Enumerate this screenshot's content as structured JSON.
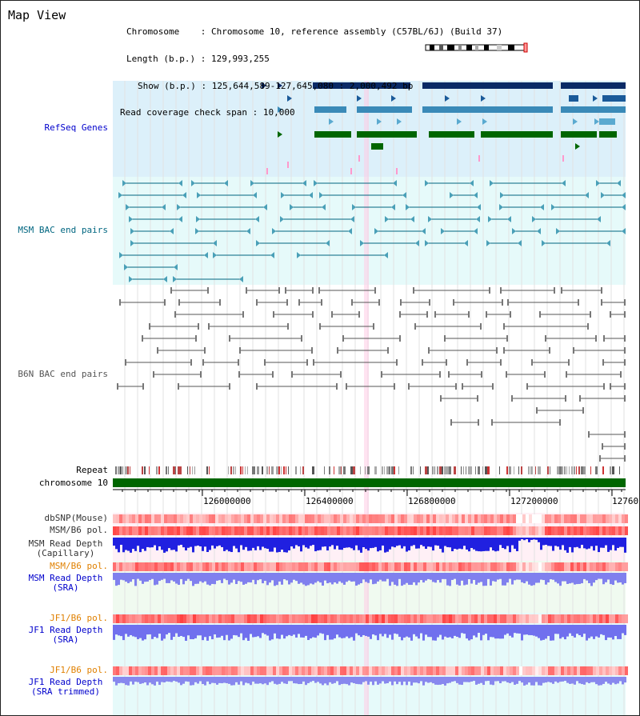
{
  "title": "Map View",
  "info": {
    "chromosome_key": "Chromosome",
    "chromosome_value": "Chromosome 10, reference assembly (C57BL/6J) (Build 37)",
    "length_key": "Length (b.p.)",
    "length_value": "129,993,255",
    "show_key": "Show (b.p.)",
    "show_value": "125,644,589-127,645,080 : 2,000,492 bp",
    "span_key": "Read coverage check span",
    "span_value": "10,000"
  },
  "tracks": {
    "refseq": "RefSeq Genes",
    "msm_bac": "MSM BAC end pairs",
    "b6n_bac": "B6N BAC end pairs",
    "repeat": "Repeat",
    "chromosome": "chromosome 10",
    "dbsnp": "dbSNP(Mouse)",
    "msm_b6_pol_1": "MSM/B6 pol.",
    "msm_depth_cap_1": "MSM Read Depth",
    "msm_depth_cap_2": "(Capillary)",
    "msm_b6_pol_2": "MSM/B6 pol.",
    "msm_depth_sra_1": "MSM Read Depth",
    "msm_depth_sra_2": "(SRA)",
    "jf1_b6_pol_1": "JF1/B6 pol.",
    "jf1_depth_sra_1": "JF1 Read Depth",
    "jf1_depth_sra_2": "(SRA)",
    "jf1_b6_pol_2": "JF1/B6 pol.",
    "jf1_depth_trim_1": "JF1 Read Depth",
    "jf1_depth_trim_2": "(SRA trimmed)"
  },
  "axis": {
    "ticks": [
      "126000000",
      "126400000",
      "126800000",
      "127200000",
      "12760"
    ]
  },
  "colors": {
    "refseq_bg": "#dcf0fa",
    "msm_bac_bg": "#e6fafa",
    "refseq_label": "#0000cc",
    "msm_label": "#006680",
    "b6n_label": "#555555",
    "pol_label": "#e08000",
    "depth_label": "#0000cc",
    "chrom_green": "#006600"
  }
}
